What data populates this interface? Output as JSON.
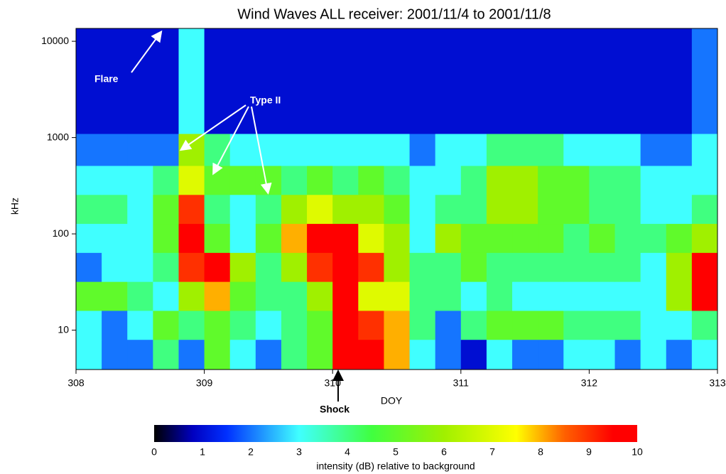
{
  "chart_data": {
    "type": "heatmap",
    "title": "Wind Waves ALL receiver: 2001/11/4 to 2001/11/8",
    "xlabel": "DOY",
    "ylabel": "kHz",
    "xlim": [
      308,
      313
    ],
    "xticks": [
      308,
      309,
      310,
      311,
      312,
      313
    ],
    "ylim": [
      3.9,
      13600
    ],
    "yticks": [
      10,
      100,
      1000,
      10000
    ],
    "log_y": true,
    "x_edges": [
      308,
      308.2,
      308.4,
      308.6,
      308.8,
      309,
      309.2,
      309.4,
      309.6,
      309.8,
      310,
      310.2,
      310.4,
      310.6,
      310.8,
      311,
      311.2,
      311.4,
      311.6,
      311.8,
      312,
      312.2,
      312.4,
      312.6,
      312.8,
      313
    ],
    "y_edges": [
      3.9,
      8,
      16,
      32,
      64,
      128,
      256,
      512,
      1100,
      13600
    ],
    "z": [
      [
        3,
        2,
        2,
        4,
        2,
        5,
        3,
        2,
        4,
        5,
        10,
        10,
        8,
        3,
        2,
        1,
        3,
        2,
        2,
        3,
        3,
        2,
        3,
        2,
        3
      ],
      [
        3,
        2,
        3,
        5,
        4,
        5,
        4,
        3,
        4,
        5,
        10,
        9,
        8,
        4,
        2,
        4,
        5,
        5,
        5,
        4,
        4,
        4,
        3,
        3,
        4
      ],
      [
        5,
        5,
        4,
        3,
        6,
        8,
        5,
        4,
        4,
        6,
        10,
        7,
        7,
        4,
        4,
        3,
        4,
        3,
        3,
        3,
        3,
        3,
        3,
        6,
        10
      ],
      [
        2,
        3,
        3,
        4,
        9,
        10,
        6,
        4,
        6,
        9,
        10,
        9,
        6,
        4,
        4,
        5,
        4,
        4,
        4,
        4,
        4,
        4,
        3,
        6,
        10
      ],
      [
        3,
        3,
        3,
        5,
        10,
        5,
        3,
        5,
        8,
        10,
        10,
        7,
        6,
        3,
        6,
        5,
        5,
        5,
        5,
        4,
        5,
        4,
        4,
        5,
        6
      ],
      [
        4,
        4,
        3,
        5,
        9,
        4,
        3,
        4,
        6,
        7,
        6,
        6,
        5,
        3,
        4,
        4,
        6,
        6,
        5,
        5,
        4,
        4,
        3,
        3,
        4
      ],
      [
        3,
        3,
        3,
        4,
        7,
        5,
        5,
        5,
        4,
        5,
        4,
        5,
        4,
        3,
        3,
        4,
        6,
        6,
        5,
        5,
        4,
        4,
        3,
        3,
        3
      ],
      [
        2,
        2,
        2,
        2,
        6,
        4,
        3,
        3,
        3,
        3,
        3,
        3,
        3,
        2,
        3,
        3,
        4,
        4,
        4,
        3,
        3,
        3,
        2,
        2,
        3
      ],
      [
        1,
        1,
        1,
        1,
        3,
        1,
        1,
        1,
        1,
        1,
        1,
        1,
        1,
        1,
        1,
        1,
        1,
        1,
        1,
        1,
        1,
        1,
        1,
        1,
        2
      ]
    ],
    "colorbar": {
      "range": [
        0,
        10
      ],
      "ticks": [
        0,
        1,
        2,
        3,
        4,
        5,
        6,
        7,
        8,
        9,
        10
      ],
      "label": "intensity (dB) relative to background"
    },
    "annotations": [
      "Flare",
      "Type II",
      "Shock"
    ]
  }
}
